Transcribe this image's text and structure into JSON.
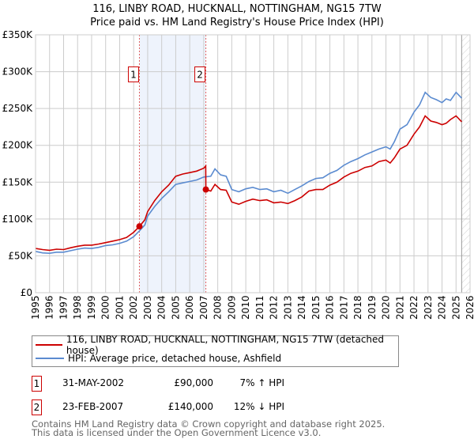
{
  "chart_data": {
    "type": "line",
    "title": "116, LINBY ROAD, HUCKNALL, NOTTINGHAM, NG15 7TW",
    "subtitle": "Price paid vs. HM Land Registry's House Price Index (HPI)",
    "xlim": [
      1995,
      2026
    ],
    "ylim": [
      0,
      350000
    ],
    "x_ticks": [
      "1995",
      "1996",
      "1997",
      "1998",
      "1999",
      "2000",
      "2001",
      "2002",
      "2003",
      "2004",
      "2005",
      "2006",
      "2007",
      "2008",
      "2009",
      "2010",
      "2011",
      "2012",
      "2013",
      "2014",
      "2015",
      "2016",
      "2017",
      "2018",
      "2019",
      "2020",
      "2021",
      "2022",
      "2023",
      "2024",
      "2025",
      "2026"
    ],
    "y_ticks": [
      {
        "value": 0,
        "label": "£0"
      },
      {
        "value": 50000,
        "label": "£50K"
      },
      {
        "value": 100000,
        "label": "£100K"
      },
      {
        "value": 150000,
        "label": "£150K"
      },
      {
        "value": 200000,
        "label": "£200K"
      },
      {
        "value": 250000,
        "label": "£250K"
      },
      {
        "value": 300000,
        "label": "£300K"
      },
      {
        "value": 350000,
        "label": "£350K"
      }
    ],
    "grid": true,
    "series": [
      {
        "name": "116, LINBY ROAD, HUCKNALL, NOTTINGHAM, NG15 7TW (detached house)",
        "color": "#cc0000",
        "x": [
          1995,
          1995.5,
          1996,
          1996.5,
          1997,
          1997.5,
          1998,
          1998.5,
          1999,
          1999.5,
          2000,
          2000.5,
          2001,
          2001.5,
          2002,
          2002.41,
          2002.8,
          2003,
          2003.5,
          2004,
          2004.5,
          2005,
          2005.5,
          2006,
          2006.5,
          2007,
          2007.14,
          2007.15,
          2007.5,
          2007.8,
          2008.2,
          2008.6,
          2009,
          2009.5,
          2010,
          2010.5,
          2011,
          2011.5,
          2012,
          2012.5,
          2013,
          2013.5,
          2014,
          2014.5,
          2015,
          2015.5,
          2016,
          2016.5,
          2017,
          2017.5,
          2018,
          2018.5,
          2019,
          2019.5,
          2020,
          2020.3,
          2020.6,
          2021,
          2021.5,
          2022,
          2022.4,
          2022.8,
          2023.2,
          2023.6,
          2024,
          2024.3,
          2024.6,
          2025,
          2025.4
        ],
        "y": [
          60000,
          58500,
          57500,
          59000,
          58500,
          61000,
          63000,
          64500,
          64500,
          66000,
          68000,
          70000,
          72000,
          75000,
          82000,
          90000,
          99000,
          110000,
          125000,
          137000,
          146000,
          158000,
          161000,
          163000,
          165000,
          169000,
          172000,
          140000,
          138000,
          147000,
          140000,
          139000,
          123000,
          120000,
          124000,
          127000,
          125000,
          126000,
          122000,
          123000,
          121000,
          125000,
          130000,
          138000,
          140000,
          140000,
          146000,
          150000,
          157000,
          162000,
          165000,
          170000,
          172000,
          178000,
          180000,
          176000,
          183000,
          195000,
          200000,
          215000,
          225000,
          240000,
          233000,
          231000,
          228000,
          230000,
          235000,
          240000,
          232000
        ]
      },
      {
        "name": "HPI: Average price, detached house, Ashfield",
        "color": "#5b8bd0",
        "x": [
          1995,
          1995.5,
          1996,
          1996.5,
          1997,
          1997.5,
          1998,
          1998.5,
          1999,
          1999.5,
          2000,
          2000.5,
          2001,
          2001.5,
          2002,
          2002.41,
          2002.8,
          2003,
          2003.5,
          2004,
          2004.5,
          2005,
          2005.5,
          2006,
          2006.5,
          2007,
          2007.5,
          2007.8,
          2008.2,
          2008.6,
          2009,
          2009.5,
          2010,
          2010.5,
          2011,
          2011.5,
          2012,
          2012.5,
          2013,
          2013.5,
          2014,
          2014.5,
          2015,
          2015.5,
          2016,
          2016.5,
          2017,
          2017.5,
          2018,
          2018.5,
          2019,
          2019.5,
          2020,
          2020.3,
          2020.6,
          2021,
          2021.5,
          2022,
          2022.4,
          2022.8,
          2023.2,
          2023.6,
          2024,
          2024.3,
          2024.6,
          2025,
          2025.4
        ],
        "y": [
          56000,
          54000,
          53500,
          55000,
          55000,
          57000,
          59000,
          60500,
          60000,
          61500,
          64000,
          65000,
          67000,
          70000,
          76000,
          84000,
          92000,
          104000,
          117000,
          128000,
          137000,
          147000,
          149000,
          151000,
          153000,
          157000,
          158000,
          168000,
          160000,
          158000,
          140000,
          137000,
          141000,
          143000,
          140000,
          141000,
          137000,
          139000,
          135000,
          140000,
          145000,
          151000,
          155000,
          156000,
          162000,
          166000,
          173000,
          178000,
          182000,
          187000,
          191000,
          195000,
          198000,
          195000,
          205000,
          222000,
          228000,
          245000,
          255000,
          272000,
          265000,
          262000,
          258000,
          263000,
          261000,
          272000,
          264000
        ]
      }
    ],
    "annotations": [
      {
        "label": "1",
        "x": 2002.41,
        "y": 90000
      },
      {
        "label": "2",
        "x": 2007.15,
        "y": 140000
      }
    ],
    "shaded_range": [
      2002.41,
      2007.15
    ],
    "hatched_from": 2025.4
  },
  "transactions": [
    {
      "num": "1",
      "date": "31-MAY-2002",
      "price": "£90,000",
      "hpi": "7% ↑ HPI"
    },
    {
      "num": "2",
      "date": "23-FEB-2007",
      "price": "£140,000",
      "hpi": "12% ↓ HPI"
    }
  ],
  "footer": {
    "line1": "Contains HM Land Registry data © Crown copyright and database right 2025.",
    "line2": "This data is licensed under the Open Government Licence v3.0."
  }
}
